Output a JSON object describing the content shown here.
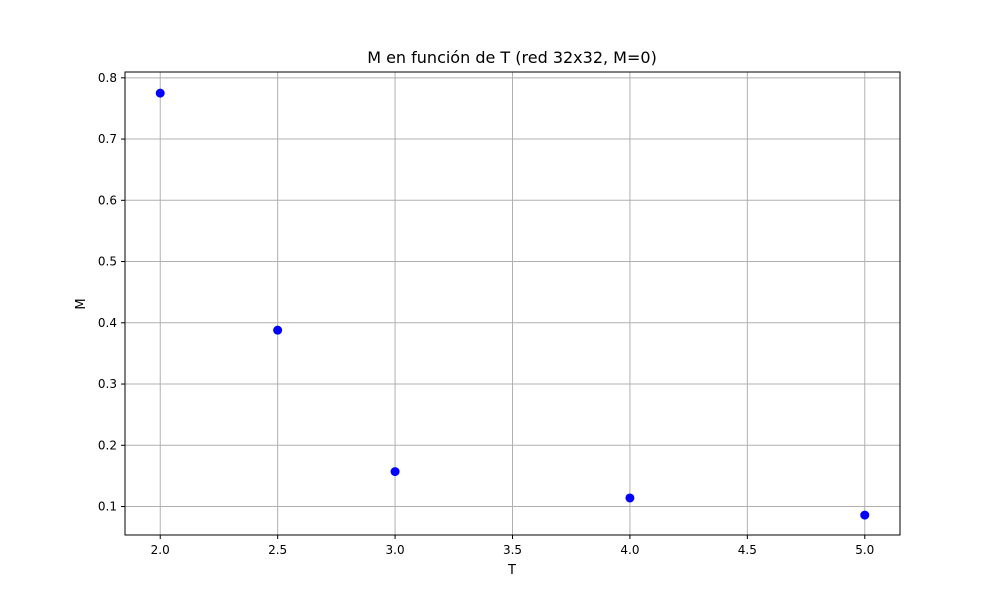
{
  "chart_data": {
    "type": "scatter",
    "title": "M en función de T (red 32x32, M=0)",
    "xlabel": "T",
    "ylabel": "M",
    "xlim": [
      1.85,
      5.15
    ],
    "ylim": [
      0.0535,
      0.8095
    ],
    "xticks": [
      2.0,
      2.5,
      3.0,
      3.5,
      4.0,
      4.5,
      5.0
    ],
    "xtick_labels": [
      "2.0",
      "2.5",
      "3.0",
      "3.5",
      "4.0",
      "4.5",
      "5.0"
    ],
    "yticks": [
      0.1,
      0.2,
      0.3,
      0.4,
      0.5,
      0.6,
      0.7,
      0.8
    ],
    "ytick_labels": [
      "0.1",
      "0.2",
      "0.3",
      "0.4",
      "0.5",
      "0.6",
      "0.7",
      "0.8"
    ],
    "grid": true,
    "marker_color": "#0000ff",
    "series": [
      {
        "x": [
          2.0,
          2.5,
          3.0,
          4.0,
          5.0
        ],
        "y": [
          0.775,
          0.388,
          0.157,
          0.114,
          0.086
        ]
      }
    ]
  }
}
